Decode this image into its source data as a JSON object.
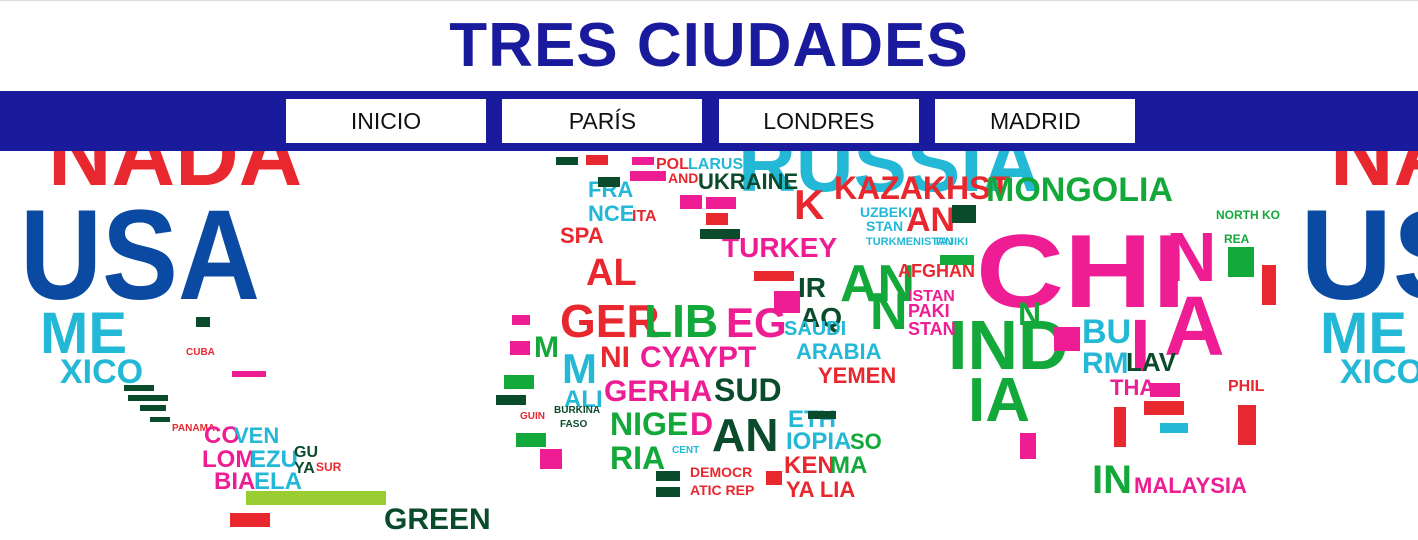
{
  "site": {
    "title": "TRES CIUDADES"
  },
  "nav": {
    "items": [
      {
        "label": "INICIO"
      },
      {
        "label": "PARÍS"
      },
      {
        "label": "LONDRES"
      },
      {
        "label": "MADRID"
      }
    ]
  },
  "banner": {
    "words": {
      "nada": "NADA",
      "usa": "USA",
      "me": "ME",
      "xico": "XICO",
      "cuba": "CUBA",
      "co": "CO",
      "ven": "VEN",
      "lom": "LOM",
      "ezu": "EZU",
      "bia": "BIA",
      "ela": "ELA",
      "gu": "GU",
      "ya": "YA",
      "sur": "SUR",
      "panama": "PANAMA",
      "france": "FRANCE",
      "ukraine": "UKRAINE",
      "pol": "POL",
      "and": "AND",
      "larus": "LARUS",
      "spa": "SPA",
      "ita": "ITA",
      "al": "AL",
      "ger": "GER",
      "lib": "LIB",
      "eg": "EG",
      "ia": "IA",
      "ni": "NI",
      "cyaypt": "CYAYPT",
      "gerha": "GERHA",
      "sud": "SUD",
      "nige": "NIGE",
      "dan": "DAN",
      "ria": "RIA",
      "eth": "ETH",
      "iopia": "IOPIA",
      "so": "SO",
      "ken": "KEN",
      "ma": "MA",
      "ya_lia": "YA LIA",
      "turkey": "TURKEY",
      "kazakhst": "KAZAKHST",
      "an": "AN",
      "uzbeki": "UZBEKI",
      "stan": "STAN",
      "mongolia": "MONGOLIA",
      "china": "CHINA",
      "india": "INDIA",
      "ir": "IR",
      "aq": "AQ",
      "saudi": "SAUDI",
      "arabia": "ARABIA",
      "yemen": "YEMEN",
      "afghan": "AFGHAN",
      "istan": "ISTAN",
      "paki": "PAKI",
      "tajiki": "TAJIKI",
      "turkmenistan": "TURKMENISTAN",
      "bu": "BU",
      "rm": "RM",
      "lav": "LAV",
      "tha": "THA",
      "malaysia": "MALAYSIA",
      "green": "GREEN",
      "russia": "RUSSIA",
      "north_ko": "NORTH KO",
      "rea": "REA",
      "phil": "PHIL",
      "democr": "DEMOCR",
      "atic_rep": "ATIC REP",
      "algeria_m": "M",
      "mali": "ALI",
      "burkina": "BURKINA",
      "faso": "FASO",
      "guin": "GUIN",
      "cent": "CENT"
    }
  }
}
